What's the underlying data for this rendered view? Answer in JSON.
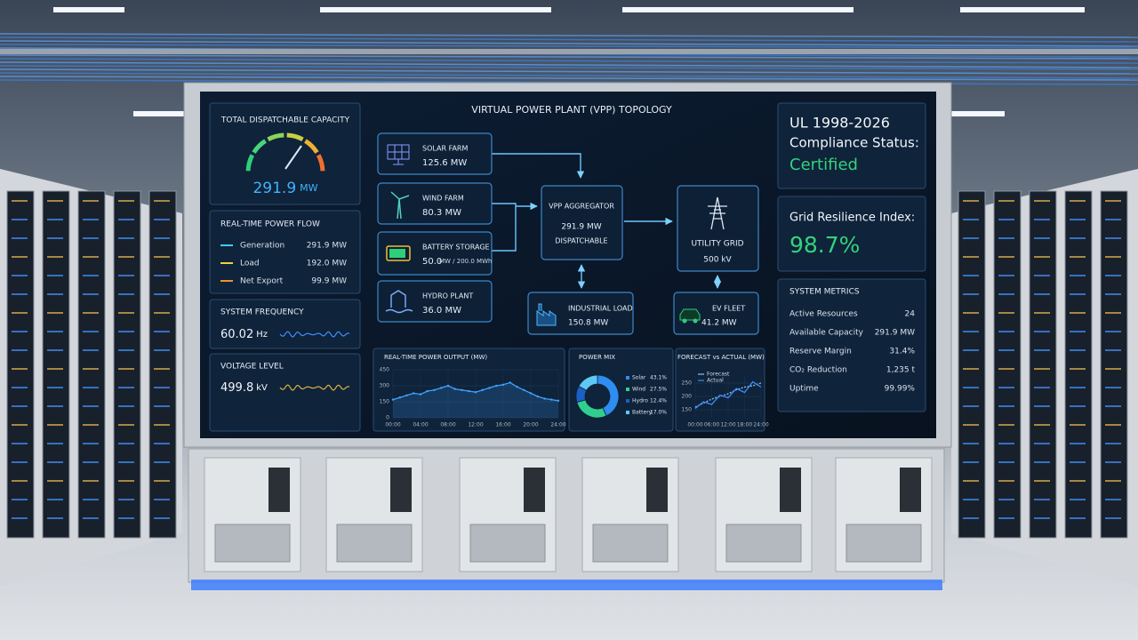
{
  "topology_title": "VIRTUAL POWER PLANT (VPP) TOPOLOGY",
  "capacity": {
    "title": "TOTAL DISPATCHABLE CAPACITY",
    "value": "291.9",
    "unit": "MW"
  },
  "power_flow": {
    "title": "REAL-TIME POWER FLOW",
    "rows": [
      {
        "label": "Generation",
        "value": "291.9 MW"
      },
      {
        "label": "Load",
        "value": "192.0 MW"
      },
      {
        "label": "Net Export",
        "value": "99.9 MW"
      }
    ]
  },
  "frequency": {
    "title": "SYSTEM FREQUENCY",
    "value": "60.02",
    "unit": "Hz"
  },
  "voltage": {
    "title": "VOLTAGE LEVEL",
    "value": "499.8",
    "unit": "kV"
  },
  "nodes": [
    {
      "label": "SOLAR FARM",
      "value": "125.6 MW"
    },
    {
      "label": "WIND FARM",
      "value": "80.3 MW"
    },
    {
      "label": "BATTERY STORAGE",
      "value": "50.0",
      "detail": "MW / 200.0 MWh"
    },
    {
      "label": "HYDRO PLANT",
      "value": "36.0 MW"
    },
    {
      "label": "VPP AGGREGATOR",
      "value": "291.9 MW",
      "detail": "DISPATCHABLE"
    },
    {
      "label": "UTILITY GRID",
      "value": "500 kV"
    },
    {
      "label": "INDUSTRIAL LOAD",
      "value": "150.8 MW"
    },
    {
      "label": "EV FLEET",
      "value": "41.2 MW"
    }
  ],
  "compliance": {
    "line1": "UL 1998-2026",
    "line2": "Compliance Status:",
    "status": "Certified"
  },
  "resilience": {
    "title": "Grid Resilience Index:",
    "value": "98.7%"
  },
  "metrics": {
    "title": "SYSTEM METRICS",
    "rows": [
      [
        "Active Resources",
        "24"
      ],
      [
        "Available Capacity",
        "291.9 MW"
      ],
      [
        "Reserve Margin",
        "31.4%"
      ],
      [
        "CO₂ Reduction",
        "1,235 t"
      ],
      [
        "Uptime",
        "99.99%"
      ]
    ]
  },
  "chart_data": [
    {
      "type": "line",
      "title": "REAL-TIME POWER OUTPUT (MW)",
      "color": "#3fa2ff",
      "x": [
        0,
        1,
        2,
        3,
        4,
        5,
        6,
        7,
        8,
        9,
        10,
        11,
        12,
        13,
        14,
        15,
        16,
        17,
        18,
        19,
        20,
        21,
        22,
        23,
        24
      ],
      "values": [
        170,
        190,
        210,
        230,
        220,
        250,
        260,
        280,
        300,
        270,
        260,
        250,
        240,
        260,
        280,
        300,
        310,
        330,
        290,
        260,
        230,
        200,
        180,
        170,
        160
      ],
      "xlim": [
        0,
        24
      ],
      "ylim": [
        0,
        450
      ],
      "yticks": [
        0,
        150,
        300,
        450
      ],
      "xticks": [
        {
          "value": 0,
          "label": "00:00"
        },
        {
          "value": 4,
          "label": "04:00"
        },
        {
          "value": 8,
          "label": "08:00"
        },
        {
          "value": 12,
          "label": "12:00"
        },
        {
          "value": 16,
          "label": "16:00"
        },
        {
          "value": 20,
          "label": "20:00"
        },
        {
          "value": 24,
          "label": "24:00"
        }
      ],
      "grid": true
    },
    {
      "type": "pie",
      "title": "POWER MIX",
      "categories": [
        "Solar",
        "Wind",
        "Hydro",
        "Battery"
      ],
      "values": [
        43.1,
        27.5,
        12.4,
        17.0
      ],
      "value_labels": [
        "43.1%",
        "27.5%",
        "12.4%",
        "17.0%"
      ],
      "colors": [
        "#2f8cf0",
        "#2fcf8f",
        "#1d5fc4",
        "#5ec8f5"
      ]
    },
    {
      "type": "line",
      "title": "FORECAST vs ACTUAL (MW)",
      "x": [
        0,
        3,
        6,
        9,
        12,
        15,
        18,
        21,
        24
      ],
      "series": [
        {
          "name": "Forecast",
          "color": "#8fc2ee",
          "values": [
            160,
            175,
            190,
            200,
            210,
            225,
            235,
            240,
            250
          ]
        },
        {
          "name": "Actual",
          "color": "#3a8dff",
          "values": [
            155,
            180,
            170,
            205,
            195,
            230,
            215,
            255,
            235
          ]
        }
      ],
      "xlim": [
        0,
        24
      ],
      "ylim": [
        120,
        280
      ],
      "yticks": [
        150,
        200,
        250
      ],
      "xticks": [
        {
          "value": 0,
          "label": "00:00"
        },
        {
          "value": 6,
          "label": "06:00"
        },
        {
          "value": 12,
          "label": "12:00"
        },
        {
          "value": 18,
          "label": "18:00"
        },
        {
          "value": 24,
          "label": "24:00"
        }
      ],
      "grid": true
    }
  ]
}
